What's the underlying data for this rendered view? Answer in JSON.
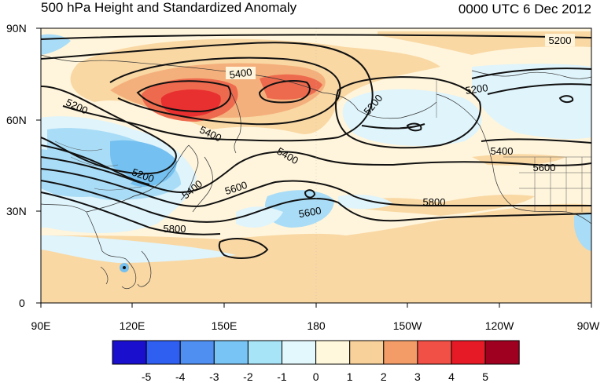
{
  "title": "500 hPa Height and Standardized Anomaly",
  "timestamp": "0000 UTC 6 Dec 2012",
  "axes": {
    "lat_labels": [
      "90N",
      "60N",
      "30N",
      "0"
    ],
    "lon_labels": [
      "90E",
      "120E",
      "150E",
      "180",
      "150W",
      "120W",
      "90W"
    ]
  },
  "contour_labels": {
    "c5200_nw": "5200",
    "c5200_ne": "5200",
    "c5200_e": "5200",
    "c5200_w": "5200",
    "c5200_b": "5200",
    "c5400_a": "5400",
    "c5400_b": "5400",
    "c5400_c": "5400",
    "c5400_d": "5400",
    "c5400_e": "5400",
    "c5600_a": "5600",
    "c5600_b": "5600",
    "c5600_c": "5600",
    "c5800_a": "5800",
    "c5800_b": "5800"
  },
  "colorbar": {
    "labels": [
      "-5",
      "-4",
      "-3",
      "-2",
      "-1",
      "0",
      "1",
      "2",
      "3",
      "4",
      "5"
    ],
    "colors": [
      "#1a0fcc",
      "#2f5ff0",
      "#4f8ff2",
      "#78c4f4",
      "#a8e4f8",
      "#e2f8fc",
      "#fff8dc",
      "#f8d09a",
      "#f49c68",
      "#f05046",
      "#e61a26",
      "#a00020"
    ]
  },
  "field_colors": {
    "land": "#fff5dc",
    "anom_neg1": "#dff4fb",
    "anom_neg2": "#a9dcf6",
    "anom_neg3": "#74c0f0",
    "anom_pos1": "#f9d8a4",
    "anom_pos2": "#f4b07c",
    "anom_pos3": "#ee6a4e",
    "anom_pos4": "#e83030"
  }
}
